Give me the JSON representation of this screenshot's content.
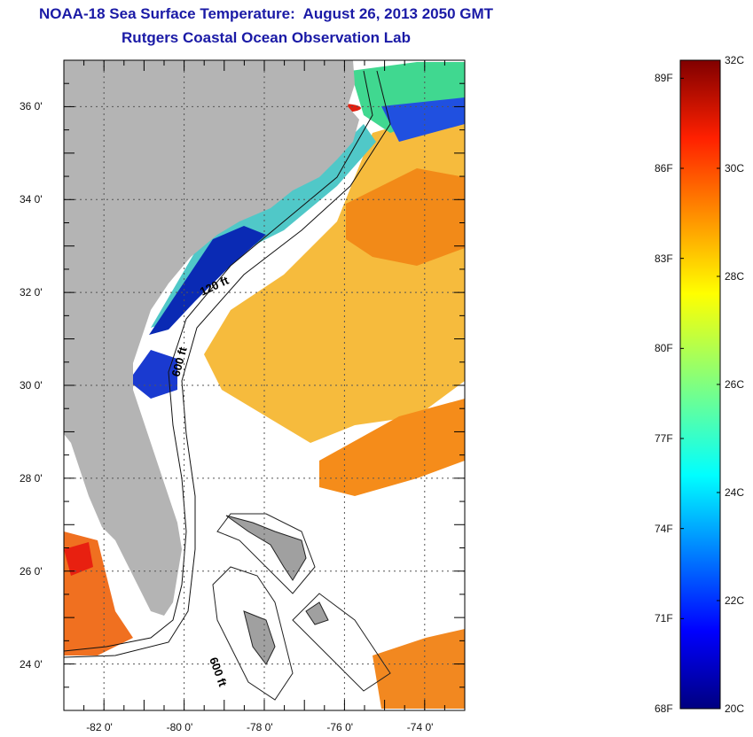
{
  "title": {
    "line1": "NOAA-18 Sea Surface Temperature:  August 26, 2013 2050 GMT",
    "line2": "Rutgers Coastal Ocean Observation Lab"
  },
  "map": {
    "lat_range": [
      23.0,
      37.0
    ],
    "lon_range": [
      -83.0,
      -73.0
    ],
    "lat_labels": [
      "36 0'",
      "34 0'",
      "32 0'",
      "30 0'",
      "28 0'",
      "26 0'",
      "24 0'"
    ],
    "lat_values": [
      36,
      34,
      32,
      30,
      28,
      26,
      24
    ],
    "lon_labels": [
      "-82 0'",
      "-80 0'",
      "-78 0'",
      "-76 0'",
      "-74 0'"
    ],
    "lon_values": [
      -82,
      -80,
      -78,
      -76,
      -74
    ],
    "isobath_labels": [
      "120 ft",
      "600 ft",
      "600 ft"
    ],
    "colors": {
      "land": "#b4b4b4",
      "ocean_cloud": "#ffffff",
      "frame": "#000000"
    }
  },
  "colorbar": {
    "fahrenheit_labels": [
      "89F",
      "86F",
      "83F",
      "80F",
      "77F",
      "74F",
      "71F",
      "68F"
    ],
    "celsius_labels": [
      "32C",
      "30C",
      "28C",
      "26C",
      "24C",
      "22C",
      "20C"
    ],
    "c_min": 20,
    "c_max": 32,
    "colormap": "jet"
  }
}
